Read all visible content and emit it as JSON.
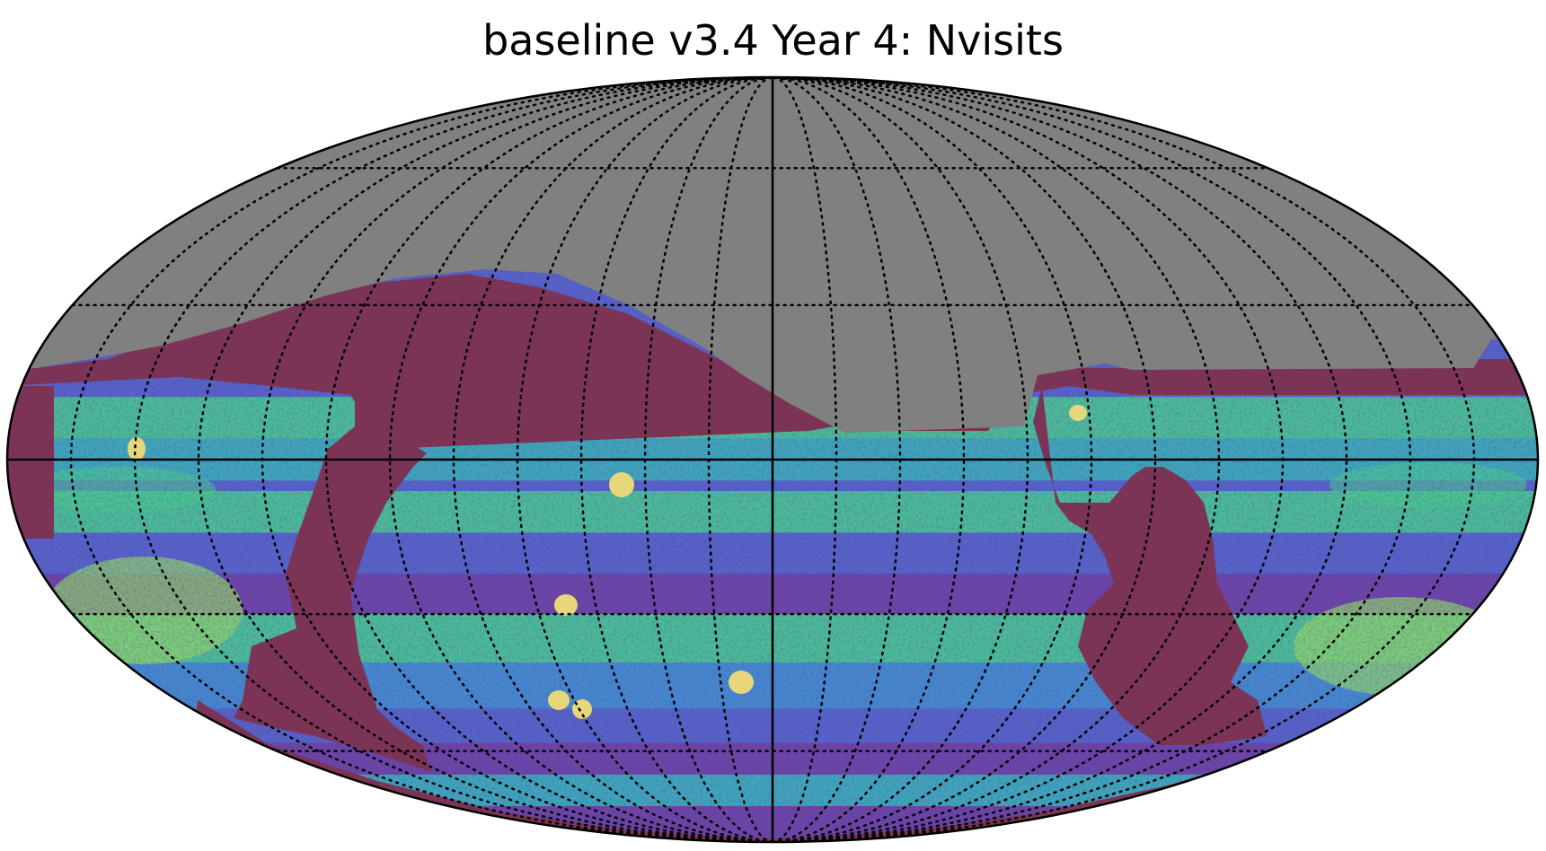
{
  "chart_data": {
    "type": "heatmap",
    "projection": "mollweide",
    "title": "baseline v3.4 Year 4: Nvisits",
    "grid": true,
    "graticule": {
      "meridians_deg": [
        -165,
        -150,
        -135,
        -120,
        -105,
        -90,
        -75,
        -60,
        -45,
        -30,
        -15,
        0,
        15,
        30,
        45,
        60,
        75,
        90,
        105,
        120,
        135,
        150,
        165
      ],
      "parallels_deg": [
        -60,
        -30,
        30,
        60
      ],
      "solid_axes": [
        "equator",
        "central-meridian"
      ]
    },
    "colors": {
      "unobserved": "#808080",
      "low": "#7b3455",
      "ddf_fields": "#e8d67a",
      "background": "#ffffff",
      "outline": "#000000"
    },
    "colormap": [
      "#7b3455",
      "#6e40a0",
      "#5563c8",
      "#3f8fd0",
      "#38b3b9",
      "#47cc8e",
      "#8fd66a",
      "#e0d56e"
    ],
    "regions": {
      "unobserved": "north sky above declination limit",
      "low_coverage": "galactic plane band and sky boundary",
      "deep_drilling_fields": 7
    }
  }
}
